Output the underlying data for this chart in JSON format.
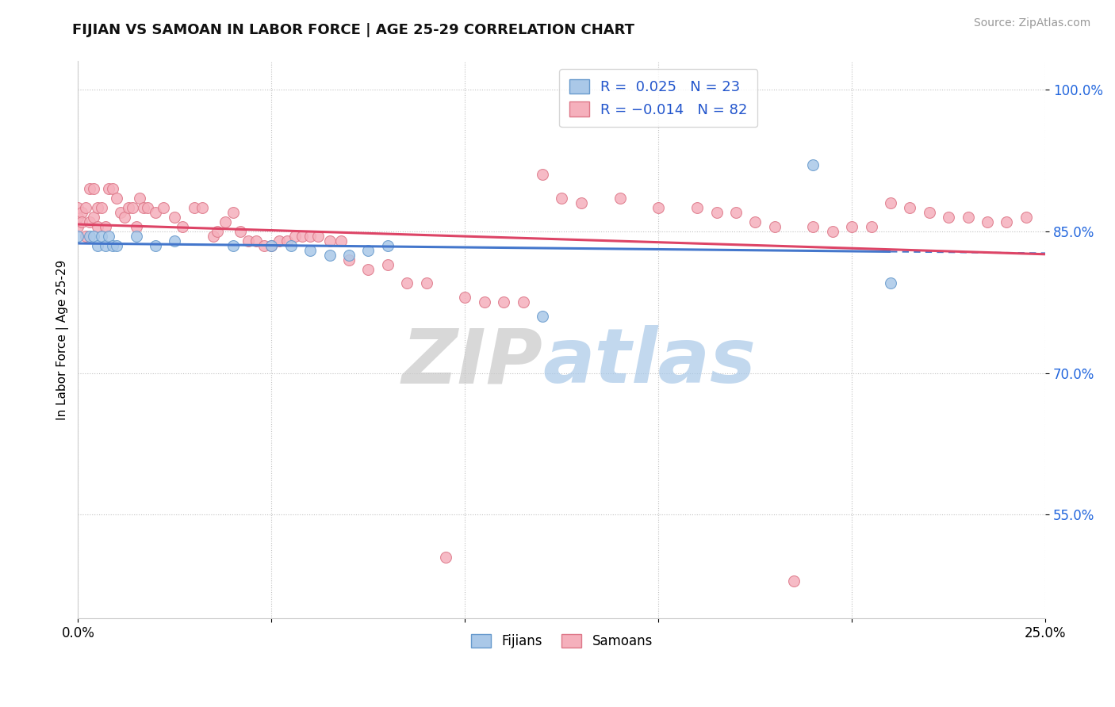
{
  "title": "FIJIAN VS SAMOAN IN LABOR FORCE | AGE 25-29 CORRELATION CHART",
  "source": "Source: ZipAtlas.com",
  "ylabel": "In Labor Force | Age 25-29",
  "xlim": [
    0.0,
    0.25
  ],
  "ylim": [
    0.44,
    1.03
  ],
  "xticks": [
    0.0,
    0.05,
    0.1,
    0.15,
    0.2,
    0.25
  ],
  "xtick_labels": [
    "0.0%",
    "",
    "",
    "",
    "",
    "25.0%"
  ],
  "ytick_positions": [
    0.55,
    0.7,
    0.85,
    1.0
  ],
  "ytick_labels": [
    "55.0%",
    "70.0%",
    "85.0%",
    "100.0%"
  ],
  "fijian_color": "#aac8e8",
  "samoan_color": "#f5b0bc",
  "fijian_edge": "#6699cc",
  "samoan_edge": "#dd7788",
  "trend_fijian_color": "#4477cc",
  "trend_samoan_color": "#dd4466",
  "r_fijian": 0.025,
  "r_samoan": -0.014,
  "n_fijian": 23,
  "n_samoan": 82,
  "fijian_x": [
    0.0,
    0.003,
    0.004,
    0.005,
    0.006,
    0.007,
    0.008,
    0.009,
    0.01,
    0.015,
    0.02,
    0.025,
    0.04,
    0.05,
    0.055,
    0.06,
    0.065,
    0.07,
    0.075,
    0.08,
    0.12,
    0.19,
    0.21
  ],
  "fijian_y": [
    0.845,
    0.845,
    0.845,
    0.835,
    0.845,
    0.835,
    0.845,
    0.835,
    0.835,
    0.845,
    0.835,
    0.84,
    0.835,
    0.835,
    0.835,
    0.83,
    0.825,
    0.825,
    0.83,
    0.835,
    0.76,
    0.92,
    0.795
  ],
  "samoan_x": [
    0.0,
    0.0,
    0.0,
    0.001,
    0.001,
    0.002,
    0.002,
    0.003,
    0.003,
    0.004,
    0.004,
    0.005,
    0.005,
    0.006,
    0.007,
    0.008,
    0.009,
    0.01,
    0.011,
    0.012,
    0.013,
    0.014,
    0.015,
    0.016,
    0.017,
    0.018,
    0.02,
    0.022,
    0.025,
    0.027,
    0.03,
    0.032,
    0.035,
    0.036,
    0.038,
    0.04,
    0.042,
    0.044,
    0.046,
    0.048,
    0.05,
    0.052,
    0.054,
    0.056,
    0.058,
    0.06,
    0.062,
    0.065,
    0.068,
    0.07,
    0.075,
    0.08,
    0.085,
    0.09,
    0.095,
    0.1,
    0.105,
    0.11,
    0.115,
    0.12,
    0.125,
    0.13,
    0.14,
    0.15,
    0.16,
    0.165,
    0.17,
    0.175,
    0.18,
    0.185,
    0.19,
    0.195,
    0.2,
    0.205,
    0.21,
    0.215,
    0.22,
    0.225,
    0.23,
    0.235,
    0.24,
    0.245
  ],
  "samoan_y": [
    0.855,
    0.865,
    0.875,
    0.87,
    0.86,
    0.845,
    0.875,
    0.86,
    0.895,
    0.865,
    0.895,
    0.855,
    0.875,
    0.875,
    0.855,
    0.895,
    0.895,
    0.885,
    0.87,
    0.865,
    0.875,
    0.875,
    0.855,
    0.885,
    0.875,
    0.875,
    0.87,
    0.875,
    0.865,
    0.855,
    0.875,
    0.875,
    0.845,
    0.85,
    0.86,
    0.87,
    0.85,
    0.84,
    0.84,
    0.835,
    0.835,
    0.84,
    0.84,
    0.845,
    0.845,
    0.845,
    0.845,
    0.84,
    0.84,
    0.82,
    0.81,
    0.815,
    0.795,
    0.795,
    0.505,
    0.78,
    0.775,
    0.775,
    0.775,
    0.91,
    0.885,
    0.88,
    0.885,
    0.875,
    0.875,
    0.87,
    0.87,
    0.86,
    0.855,
    0.48,
    0.855,
    0.85,
    0.855,
    0.855,
    0.88,
    0.875,
    0.87,
    0.865,
    0.865,
    0.86,
    0.86,
    0.865
  ]
}
